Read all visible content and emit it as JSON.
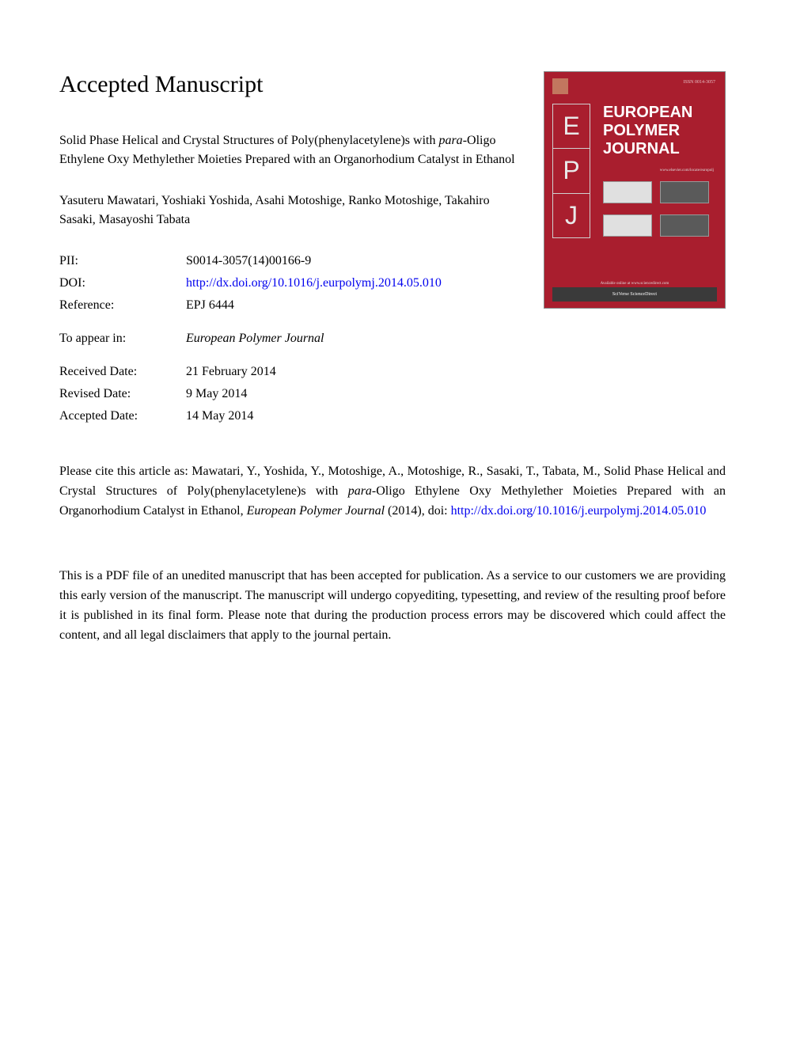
{
  "header": {
    "heading": "Accepted Manuscript"
  },
  "article": {
    "title_part1": "Solid Phase Helical and Crystal Structures of Poly(phenylacetylene)s with ",
    "title_italic": "para",
    "title_part2": "-Oligo Ethylene Oxy Methylether Moieties Prepared with an Organorhodium Catalyst in Ethanol",
    "authors": "Yasuteru Mawatari, Yoshiaki Yoshida, Asahi Motoshige, Ranko Motoshige, Takahiro Sasaki, Masayoshi Tabata"
  },
  "meta": {
    "pii_label": "PII:",
    "pii_value": "S0014-3057(14)00166-9",
    "doi_label": "DOI:",
    "doi_value": "http://dx.doi.org/10.1016/j.eurpolymj.2014.05.010",
    "reference_label": "Reference:",
    "reference_value": "EPJ 6444",
    "appear_label": "To appear in:",
    "appear_value": "European Polymer Journal",
    "received_label": "Received Date:",
    "received_value": "21 February 2014",
    "revised_label": "Revised Date:",
    "revised_value": "9 May 2014",
    "accepted_label": "Accepted Date:",
    "accepted_value": "14 May 2014"
  },
  "cover": {
    "journal_title": "EUROPEAN POLYMER JOURNAL",
    "issn": "ISSN 0014-3057",
    "epj_e": "E",
    "epj_p": "P",
    "epj_j": "J",
    "url": "www.elsevier.com/locate/europolj",
    "avail": "Available online at www.sciencedirect.com",
    "sd": "SciVerse ScienceDirect",
    "colors": {
      "background": "#a91e2e",
      "text": "#ffffff"
    }
  },
  "citation": {
    "prefix": "Please cite this article as: Mawatari, Y., Yoshida, Y., Motoshige, A., Motoshige, R., Sasaki, T., Tabata, M., Solid Phase Helical and Crystal Structures of Poly(phenylacetylene)s with ",
    "italic1": "para",
    "mid": "-Oligo Ethylene Oxy Methylether Moieties Prepared with an Organorhodium Catalyst in Ethanol, ",
    "italic2": "European Polymer Journal",
    "suffix": " (2014), doi: ",
    "link": "http://dx.doi.org/10.1016/j.eurpolymj.2014.05.010"
  },
  "disclaimer": {
    "text": "This is a PDF file of an unedited manuscript that has been accepted for publication. As a service to our customers we are providing this early version of the manuscript. The manuscript will undergo copyediting, typesetting, and review of the resulting proof before it is published in its final form. Please note that during the production process errors may be discovered which could affect the content, and all legal disclaimers that apply to the journal pertain."
  }
}
